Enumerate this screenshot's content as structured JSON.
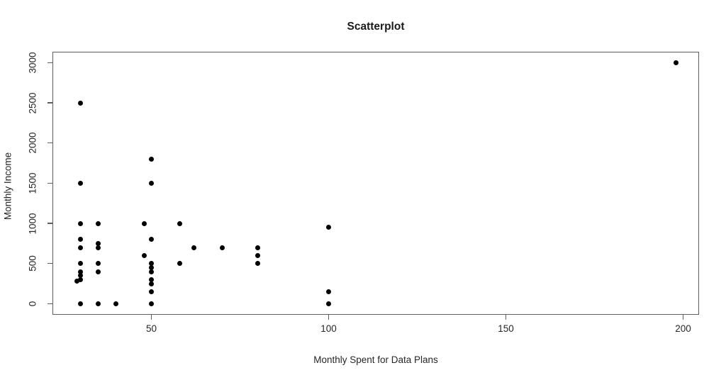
{
  "chart": {
    "background_color": "#ffffff",
    "axis_color": "#5e5e5e",
    "text_color": "#262626",
    "point_color": "#000000"
  },
  "chart_data": {
    "type": "scatter",
    "title": "Scatterplot",
    "xlabel": "Monthly Spent for Data Plans",
    "ylabel": "Monthly Income",
    "marker": "filled-circle",
    "grid": false,
    "legend": null,
    "x_ticks": [
      50,
      100,
      150,
      200
    ],
    "y_ticks": [
      0,
      500,
      1000,
      1500,
      2000,
      2500,
      3000
    ],
    "xlim": [
      22.1,
      204.5
    ],
    "ylim": [
      -138,
      3136
    ],
    "points": [
      [
        29,
        280
      ],
      [
        30,
        0
      ],
      [
        30,
        300
      ],
      [
        30,
        350
      ],
      [
        30,
        400
      ],
      [
        30,
        500
      ],
      [
        30,
        700
      ],
      [
        30,
        800
      ],
      [
        30,
        1000
      ],
      [
        30,
        1500
      ],
      [
        30,
        2500
      ],
      [
        35,
        0
      ],
      [
        35,
        400
      ],
      [
        35,
        500
      ],
      [
        35,
        700
      ],
      [
        35,
        750
      ],
      [
        35,
        1000
      ],
      [
        40,
        0
      ],
      [
        48,
        600
      ],
      [
        48,
        1000
      ],
      [
        50,
        0
      ],
      [
        50,
        150
      ],
      [
        50,
        250
      ],
      [
        50,
        300
      ],
      [
        50,
        400
      ],
      [
        50,
        450
      ],
      [
        50,
        500
      ],
      [
        50,
        800
      ],
      [
        50,
        1500
      ],
      [
        50,
        1800
      ],
      [
        58,
        500
      ],
      [
        58,
        1000
      ],
      [
        62,
        700
      ],
      [
        70,
        700
      ],
      [
        80,
        500
      ],
      [
        80,
        600
      ],
      [
        80,
        700
      ],
      [
        100,
        0
      ],
      [
        100,
        150
      ],
      [
        100,
        950
      ],
      [
        198,
        3000
      ]
    ]
  }
}
